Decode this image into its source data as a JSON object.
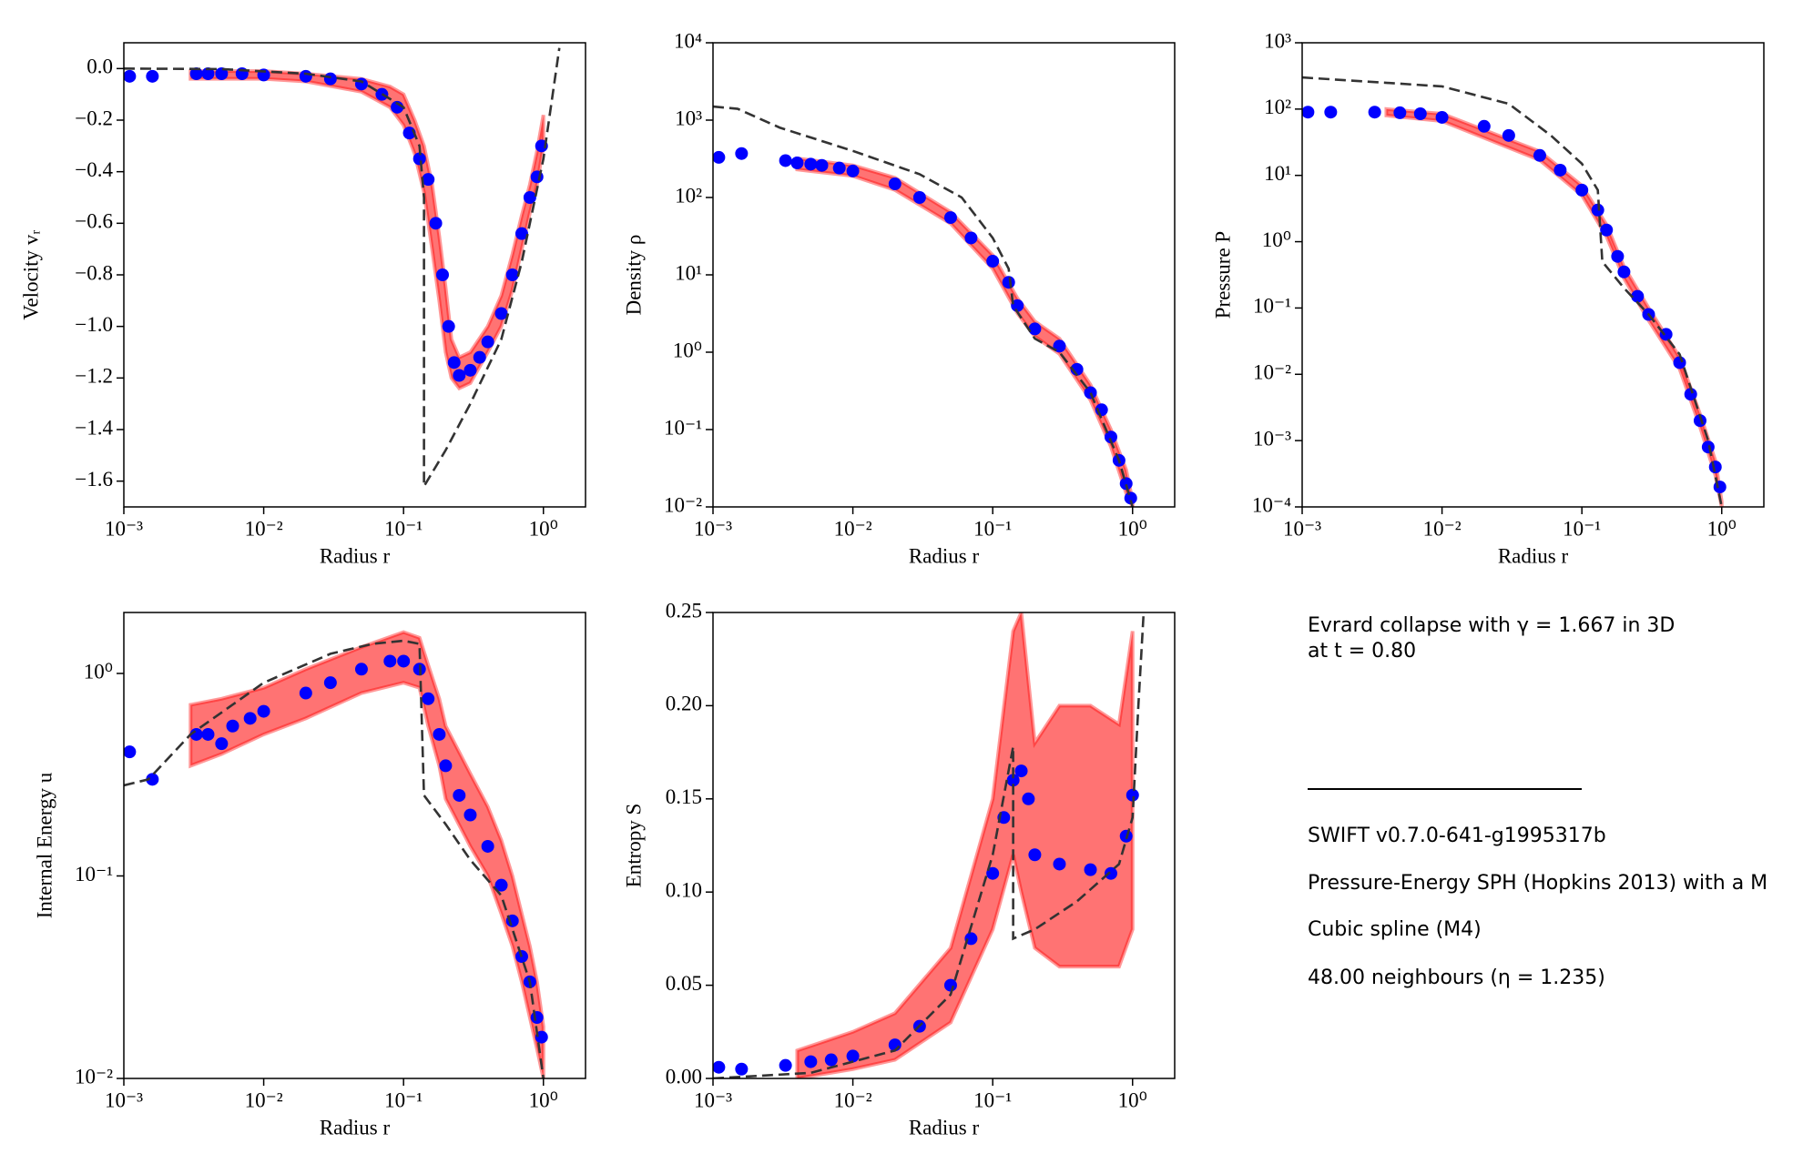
{
  "chart_data": [
    {
      "type": "scatter",
      "xlabel": "Radius r",
      "ylabel": "Velocity vᵣ",
      "xscale": "log",
      "yscale": "linear",
      "xlim": [
        0.001,
        2
      ],
      "xticks": [
        {
          "value": 0.001,
          "label": "10⁻³"
        },
        {
          "value": 0.01,
          "label": "10⁻²"
        },
        {
          "value": 0.1,
          "label": "10⁻¹"
        },
        {
          "value": 1,
          "label": "10⁰"
        }
      ],
      "ylim": [
        -1.7,
        0.1
      ],
      "yticks": [
        {
          "value": 0,
          "label": "0.0"
        },
        {
          "value": -0.2,
          "label": "−0.2"
        },
        {
          "value": -0.4,
          "label": "−0.4"
        },
        {
          "value": -0.6,
          "label": "−0.6"
        },
        {
          "value": -0.8,
          "label": "−0.8"
        },
        {
          "value": -1.0,
          "label": "−1.0"
        },
        {
          "value": -1.2,
          "label": "−1.2"
        },
        {
          "value": -1.4,
          "label": "−1.4"
        },
        {
          "value": -1.6,
          "label": "−1.6"
        }
      ],
      "series": [
        {
          "style": "band",
          "color": "#ff0000",
          "x": [
            0.003,
            0.01,
            0.02,
            0.05,
            0.08,
            0.1,
            0.12,
            0.14,
            0.16,
            0.18,
            0.2,
            0.22,
            0.25,
            0.3,
            0.4,
            0.5,
            0.6,
            0.7,
            0.8,
            0.9,
            1.0
          ],
          "upper": [
            -0.01,
            -0.01,
            -0.02,
            -0.04,
            -0.07,
            -0.1,
            -0.2,
            -0.3,
            -0.45,
            -0.65,
            -0.85,
            -1.05,
            -1.12,
            -1.1,
            -1.0,
            -0.88,
            -0.72,
            -0.57,
            -0.45,
            -0.32,
            -0.18
          ],
          "lower": [
            -0.04,
            -0.04,
            -0.05,
            -0.09,
            -0.15,
            -0.22,
            -0.33,
            -0.48,
            -0.7,
            -0.9,
            -1.1,
            -1.2,
            -1.24,
            -1.22,
            -1.1,
            -1.0,
            -0.86,
            -0.7,
            -0.56,
            -0.45,
            -0.3
          ]
        },
        {
          "style": "marker",
          "color": "#0000ff",
          "x": [
            0.0011,
            0.0016,
            0.0033,
            0.004,
            0.005,
            0.007,
            0.01,
            0.02,
            0.03,
            0.05,
            0.07,
            0.09,
            0.11,
            0.13,
            0.15,
            0.17,
            0.19,
            0.21,
            0.23,
            0.25,
            0.3,
            0.35,
            0.4,
            0.5,
            0.6,
            0.7,
            0.8,
            0.9,
            0.97
          ],
          "values": [
            -0.03,
            -0.03,
            -0.02,
            -0.02,
            -0.02,
            -0.02,
            -0.025,
            -0.03,
            -0.04,
            -0.06,
            -0.1,
            -0.15,
            -0.25,
            -0.35,
            -0.43,
            -0.6,
            -0.8,
            -1.0,
            -1.14,
            -1.19,
            -1.17,
            -1.12,
            -1.06,
            -0.95,
            -0.8,
            -0.64,
            -0.5,
            -0.42,
            -0.3
          ]
        },
        {
          "style": "dashed",
          "color": "#333333",
          "x": [
            0.001,
            0.005,
            0.02,
            0.05,
            0.1,
            0.13,
            0.14,
            0.14,
            0.2,
            0.3,
            0.5,
            0.7,
            1.0,
            1.3
          ],
          "values": [
            0,
            -0.002,
            -0.02,
            -0.05,
            -0.15,
            -0.3,
            -0.5,
            -1.62,
            -1.48,
            -1.3,
            -1.05,
            -0.75,
            -0.35,
            0.08
          ]
        }
      ]
    },
    {
      "type": "scatter",
      "xlabel": "Radius r",
      "ylabel": "Density ρ",
      "xscale": "log",
      "yscale": "log",
      "xlim": [
        0.001,
        2
      ],
      "xticks": [
        {
          "value": 0.001,
          "label": "10⁻³"
        },
        {
          "value": 0.01,
          "label": "10⁻²"
        },
        {
          "value": 0.1,
          "label": "10⁻¹"
        },
        {
          "value": 1,
          "label": "10⁰"
        }
      ],
      "ylim": [
        0.01,
        10000
      ],
      "yticks": [
        {
          "value": 0.01,
          "label": "10⁻²"
        },
        {
          "value": 0.1,
          "label": "10⁻¹"
        },
        {
          "value": 1,
          "label": "10⁰"
        },
        {
          "value": 10,
          "label": "10¹"
        },
        {
          "value": 100,
          "label": "10²"
        },
        {
          "value": 1000,
          "label": "10³"
        },
        {
          "value": 10000,
          "label": "10⁴"
        }
      ],
      "series": [
        {
          "style": "band",
          "color": "#ff0000",
          "x": [
            0.004,
            0.01,
            0.02,
            0.05,
            0.1,
            0.15,
            0.2,
            0.3,
            0.5,
            0.7,
            0.9,
            1.0
          ],
          "upper": [
            320,
            260,
            180,
            65,
            18,
            5,
            2.5,
            1.5,
            0.38,
            0.1,
            0.03,
            0.012
          ],
          "lower": [
            230,
            190,
            125,
            46,
            12,
            3.2,
            1.6,
            0.95,
            0.24,
            0.06,
            0.015,
            0.01
          ]
        },
        {
          "style": "marker",
          "color": "#0000ff",
          "x": [
            0.0011,
            0.0016,
            0.0033,
            0.004,
            0.005,
            0.006,
            0.008,
            0.01,
            0.02,
            0.03,
            0.05,
            0.07,
            0.1,
            0.13,
            0.15,
            0.2,
            0.3,
            0.4,
            0.5,
            0.6,
            0.7,
            0.8,
            0.9,
            0.97
          ],
          "values": [
            330,
            370,
            300,
            280,
            270,
            260,
            240,
            220,
            150,
            100,
            55,
            30,
            15,
            8,
            4,
            2,
            1.2,
            0.6,
            0.3,
            0.18,
            0.08,
            0.04,
            0.02,
            0.013
          ]
        },
        {
          "style": "dashed",
          "color": "#333333",
          "x": [
            0.001,
            0.0015,
            0.003,
            0.01,
            0.03,
            0.06,
            0.1,
            0.13,
            0.14,
            0.2,
            0.3,
            0.5,
            0.8,
            1.0
          ],
          "values": [
            1500,
            1400,
            800,
            400,
            200,
            100,
            30,
            12,
            4,
            1.5,
            1,
            0.3,
            0.04,
            0.01
          ]
        }
      ]
    },
    {
      "type": "scatter",
      "xlabel": "Radius r",
      "ylabel": "Pressure P",
      "xscale": "log",
      "yscale": "log",
      "xlim": [
        0.001,
        2
      ],
      "xticks": [
        {
          "value": 0.001,
          "label": "10⁻³"
        },
        {
          "value": 0.01,
          "label": "10⁻²"
        },
        {
          "value": 0.1,
          "label": "10⁻¹"
        },
        {
          "value": 1,
          "label": "10⁰"
        }
      ],
      "ylim": [
        0.0001,
        1000
      ],
      "yticks": [
        {
          "value": 0.0001,
          "label": "10⁻⁴"
        },
        {
          "value": 0.001,
          "label": "10⁻³"
        },
        {
          "value": 0.01,
          "label": "10⁻²"
        },
        {
          "value": 0.1,
          "label": "10⁻¹"
        },
        {
          "value": 1,
          "label": "10⁰"
        },
        {
          "value": 10,
          "label": "10¹"
        },
        {
          "value": 100,
          "label": "10²"
        },
        {
          "value": 1000,
          "label": "10³"
        }
      ],
      "series": [
        {
          "style": "band",
          "color": "#ff0000",
          "x": [
            0.004,
            0.01,
            0.05,
            0.1,
            0.15,
            0.2,
            0.3,
            0.5,
            0.7,
            0.9,
            1.0
          ],
          "upper": [
            100,
            85,
            23,
            7,
            1.8,
            0.42,
            0.1,
            0.018,
            0.0025,
            0.0005,
            0.00012
          ],
          "lower": [
            80,
            66,
            17,
            5,
            1.2,
            0.28,
            0.065,
            0.012,
            0.0016,
            0.0003,
            0.0001
          ]
        },
        {
          "style": "marker",
          "color": "#0000ff",
          "x": [
            0.0011,
            0.0016,
            0.0033,
            0.005,
            0.007,
            0.01,
            0.02,
            0.03,
            0.05,
            0.07,
            0.1,
            0.13,
            0.15,
            0.18,
            0.2,
            0.25,
            0.3,
            0.4,
            0.5,
            0.6,
            0.7,
            0.8,
            0.9,
            0.97
          ],
          "values": [
            90,
            90,
            90,
            88,
            85,
            75,
            55,
            40,
            20,
            12,
            6,
            3,
            1.5,
            0.6,
            0.35,
            0.15,
            0.08,
            0.04,
            0.015,
            0.005,
            0.002,
            0.0008,
            0.0004,
            0.0002
          ]
        },
        {
          "style": "dashed",
          "color": "#333333",
          "x": [
            0.001,
            0.01,
            0.03,
            0.06,
            0.1,
            0.13,
            0.14,
            0.2,
            0.3,
            0.5,
            0.8,
            1.0
          ],
          "values": [
            300,
            220,
            120,
            40,
            15,
            6,
            0.5,
            0.2,
            0.08,
            0.02,
            0.001,
            0.0001
          ]
        }
      ]
    },
    {
      "type": "scatter",
      "xlabel": "Radius r",
      "ylabel": "Internal Energy u",
      "xscale": "log",
      "yscale": "log",
      "xlim": [
        0.001,
        2
      ],
      "xticks": [
        {
          "value": 0.001,
          "label": "10⁻³"
        },
        {
          "value": 0.01,
          "label": "10⁻²"
        },
        {
          "value": 0.1,
          "label": "10⁻¹"
        },
        {
          "value": 1,
          "label": "10⁰"
        }
      ],
      "ylim": [
        0.01,
        2
      ],
      "yticks": [
        {
          "value": 0.01,
          "label": "10⁻²"
        },
        {
          "value": 0.1,
          "label": "10⁻¹"
        },
        {
          "value": 1,
          "label": "10⁰"
        }
      ],
      "series": [
        {
          "style": "band",
          "color": "#ff0000",
          "x": [
            0.003,
            0.005,
            0.01,
            0.02,
            0.05,
            0.1,
            0.13,
            0.15,
            0.18,
            0.2,
            0.3,
            0.4,
            0.5,
            0.6,
            0.7,
            0.8,
            0.9,
            1.0
          ],
          "upper": [
            0.7,
            0.75,
            0.85,
            1.05,
            1.35,
            1.6,
            1.5,
            1.1,
            0.75,
            0.55,
            0.32,
            0.22,
            0.15,
            0.1,
            0.065,
            0.045,
            0.03,
            0.018
          ],
          "lower": [
            0.35,
            0.4,
            0.5,
            0.6,
            0.8,
            0.9,
            0.85,
            0.55,
            0.35,
            0.24,
            0.14,
            0.1,
            0.065,
            0.045,
            0.03,
            0.02,
            0.014,
            0.01
          ]
        },
        {
          "style": "marker",
          "color": "#0000ff",
          "x": [
            0.0011,
            0.0016,
            0.0033,
            0.004,
            0.005,
            0.006,
            0.008,
            0.01,
            0.02,
            0.03,
            0.05,
            0.08,
            0.1,
            0.13,
            0.15,
            0.18,
            0.2,
            0.25,
            0.3,
            0.4,
            0.5,
            0.6,
            0.7,
            0.8,
            0.9,
            0.97
          ],
          "values": [
            0.41,
            0.3,
            0.5,
            0.5,
            0.45,
            0.55,
            0.6,
            0.65,
            0.8,
            0.9,
            1.05,
            1.15,
            1.15,
            1.05,
            0.75,
            0.5,
            0.35,
            0.25,
            0.2,
            0.14,
            0.09,
            0.06,
            0.04,
            0.03,
            0.02,
            0.016
          ]
        },
        {
          "style": "dashed",
          "color": "#333333",
          "x": [
            0.001,
            0.0015,
            0.003,
            0.01,
            0.03,
            0.06,
            0.1,
            0.13,
            0.14,
            0.2,
            0.3,
            0.5,
            0.8,
            1.0
          ],
          "values": [
            0.28,
            0.3,
            0.5,
            0.9,
            1.25,
            1.4,
            1.45,
            1.4,
            0.25,
            0.18,
            0.12,
            0.08,
            0.03,
            0.01
          ]
        }
      ]
    },
    {
      "type": "scatter",
      "xlabel": "Radius r",
      "ylabel": "Entropy S",
      "xscale": "log",
      "yscale": "linear",
      "xlim": [
        0.001,
        2
      ],
      "xticks": [
        {
          "value": 0.001,
          "label": "10⁻³"
        },
        {
          "value": 0.01,
          "label": "10⁻²"
        },
        {
          "value": 0.1,
          "label": "10⁻¹"
        },
        {
          "value": 1,
          "label": "10⁰"
        }
      ],
      "ylim": [
        0,
        0.25
      ],
      "yticks": [
        {
          "value": 0,
          "label": "0.00"
        },
        0.05,
        {
          "value": 0.1,
          "label": "0.10"
        },
        0.15,
        {
          "value": 0.2,
          "label": "0.20"
        },
        0.25
      ],
      "series": [
        {
          "style": "band",
          "color": "#ff0000",
          "x": [
            0.004,
            0.01,
            0.02,
            0.05,
            0.1,
            0.14,
            0.16,
            0.2,
            0.3,
            0.5,
            0.8,
            1.0
          ],
          "upper": [
            0.015,
            0.025,
            0.035,
            0.07,
            0.15,
            0.24,
            0.25,
            0.18,
            0.2,
            0.2,
            0.19,
            0.24
          ],
          "lower": [
            0,
            0.005,
            0.01,
            0.03,
            0.08,
            0.12,
            0.1,
            0.07,
            0.06,
            0.06,
            0.06,
            0.08
          ]
        },
        {
          "style": "marker",
          "color": "#0000ff",
          "x": [
            0.0011,
            0.0016,
            0.0033,
            0.005,
            0.007,
            0.01,
            0.02,
            0.03,
            0.05,
            0.07,
            0.1,
            0.12,
            0.14,
            0.16,
            0.18,
            0.2,
            0.3,
            0.5,
            0.7,
            0.9,
            1.0
          ],
          "values": [
            0.006,
            0.005,
            0.007,
            0.009,
            0.01,
            0.012,
            0.018,
            0.028,
            0.05,
            0.075,
            0.11,
            0.14,
            0.16,
            0.165,
            0.15,
            0.12,
            0.115,
            0.112,
            0.11,
            0.13,
            0.152
          ]
        },
        {
          "style": "dashed",
          "color": "#333333",
          "x": [
            0.001,
            0.005,
            0.02,
            0.05,
            0.1,
            0.14,
            0.14,
            0.2,
            0.4,
            0.8,
            1.0,
            1.1,
            1.2
          ],
          "values": [
            0,
            0.003,
            0.015,
            0.045,
            0.12,
            0.178,
            0.075,
            0.08,
            0.095,
            0.115,
            0.14,
            0.2,
            0.25
          ]
        }
      ]
    }
  ],
  "info": {
    "lines": [
      "Evrard collapse with γ = 1.667 in 3D",
      "at t = 0.80",
      "SWIFT v0.7.0-641-g1995317b",
      "Pressure-Energy SPH (Hopkins 2013) with a M",
      "Cubic spline (M4)",
      "48.00 neighbours (η = 1.235)"
    ]
  }
}
